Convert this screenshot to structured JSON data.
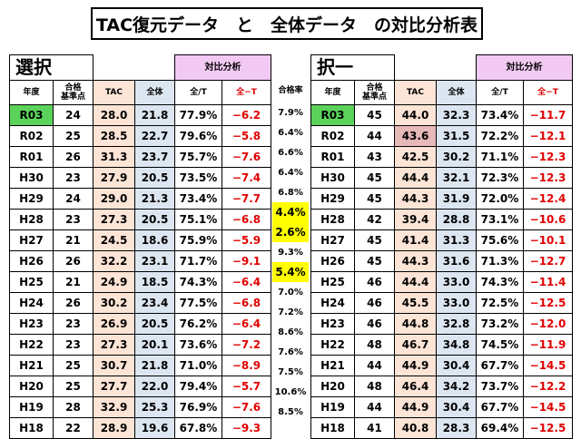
{
  "title": "TAC復元データ　と　全体データ　の対比分析表",
  "pass_rate": {
    "header": "合格率",
    "values": [
      "7.9%",
      "6.4%",
      "6.6%",
      "6.4%",
      "6.8%",
      "4.4%",
      "2.6%",
      "9.3%",
      "5.4%",
      "7.0%",
      "7.2%",
      "8.6%",
      "7.6%",
      "7.5%",
      "10.6%",
      "8.5%"
    ]
  },
  "tables": [
    {
      "section": "選択",
      "analysis": "対比分析",
      "headers": [
        "年度",
        "合格\n基準点",
        "TAC",
        "全体",
        "全/T",
        "全−T"
      ],
      "rows": [
        [
          "R03",
          "24",
          "28.0",
          "21.8",
          "77.9%",
          "−6.2"
        ],
        [
          "R02",
          "25",
          "28.5",
          "22.7",
          "79.6%",
          "−5.8"
        ],
        [
          "R01",
          "26",
          "31.3",
          "23.7",
          "75.7%",
          "−7.6"
        ],
        [
          "H30",
          "23",
          "27.9",
          "20.5",
          "73.5%",
          "−7.4"
        ],
        [
          "H29",
          "24",
          "29.0",
          "21.3",
          "73.4%",
          "−7.7"
        ],
        [
          "H28",
          "23",
          "27.3",
          "20.5",
          "75.1%",
          "−6.8"
        ],
        [
          "H27",
          "21",
          "24.5",
          "18.6",
          "75.9%",
          "−5.9"
        ],
        [
          "H26",
          "26",
          "32.2",
          "23.1",
          "71.7%",
          "−9.1"
        ],
        [
          "H25",
          "21",
          "24.9",
          "18.5",
          "74.3%",
          "−6.4"
        ],
        [
          "H24",
          "26",
          "30.2",
          "23.4",
          "77.5%",
          "−6.8"
        ],
        [
          "H23",
          "23",
          "26.9",
          "20.5",
          "76.2%",
          "−6.4"
        ],
        [
          "H22",
          "23",
          "27.3",
          "20.1",
          "73.6%",
          "−7.2"
        ],
        [
          "H21",
          "25",
          "30.7",
          "21.8",
          "71.0%",
          "−8.9"
        ],
        [
          "H20",
          "25",
          "27.7",
          "22.0",
          "79.4%",
          "−5.7"
        ],
        [
          "H19",
          "28",
          "32.9",
          "25.3",
          "76.9%",
          "−7.6"
        ],
        [
          "H18",
          "22",
          "28.9",
          "19.6",
          "67.8%",
          "−9.3"
        ]
      ]
    },
    {
      "section": "択一",
      "analysis": "対比分析",
      "headers": [
        "年度",
        "合格\n基準点",
        "TAC",
        "全体",
        "全/T",
        "全−T"
      ],
      "rows": [
        [
          "R03",
          "45",
          "44.0",
          "32.3",
          "73.4%",
          "−11.7"
        ],
        [
          "R02",
          "44",
          "43.6",
          "31.5",
          "72.2%",
          "−12.1"
        ],
        [
          "R01",
          "43",
          "42.5",
          "30.2",
          "71.1%",
          "−12.3"
        ],
        [
          "H30",
          "45",
          "44.4",
          "32.1",
          "72.3%",
          "−12.3"
        ],
        [
          "H29",
          "45",
          "44.3",
          "31.9",
          "72.0%",
          "−12.4"
        ],
        [
          "H28",
          "42",
          "39.4",
          "28.8",
          "73.1%",
          "−10.6"
        ],
        [
          "H27",
          "45",
          "41.4",
          "31.3",
          "75.6%",
          "−10.1"
        ],
        [
          "H26",
          "45",
          "44.3",
          "31.6",
          "71.3%",
          "−12.7"
        ],
        [
          "H25",
          "46",
          "44.4",
          "33.0",
          "74.3%",
          "−11.4"
        ],
        [
          "H24",
          "46",
          "45.5",
          "33.0",
          "72.5%",
          "−12.5"
        ],
        [
          "H23",
          "46",
          "44.8",
          "32.8",
          "73.2%",
          "−12.0"
        ],
        [
          "H22",
          "48",
          "46.7",
          "34.8",
          "74.5%",
          "−11.9"
        ],
        [
          "H21",
          "44",
          "44.9",
          "30.4",
          "67.7%",
          "−14.5"
        ],
        [
          "H20",
          "48",
          "46.4",
          "34.2",
          "73.7%",
          "−12.2"
        ],
        [
          "H19",
          "44",
          "44.9",
          "30.4",
          "67.7%",
          "−14.5"
        ],
        [
          "H18",
          "41",
          "40.8",
          "28.3",
          "69.4%",
          "−12.5"
        ]
      ]
    }
  ]
}
